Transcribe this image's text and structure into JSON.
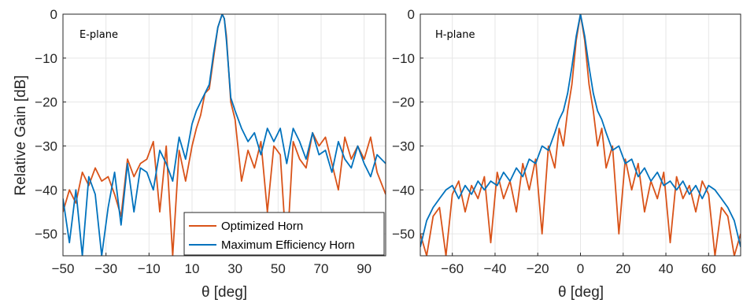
{
  "chart_data": [
    {
      "type": "line",
      "panel_label": "E-plane",
      "xlabel": "θ [deg]",
      "ylabel": "Relative Gain [dB]",
      "xlim": [
        -50,
        100
      ],
      "ylim": [
        -55,
        0
      ],
      "xticks": [
        -50,
        -30,
        -10,
        10,
        30,
        50,
        70,
        90
      ],
      "xtick_labels": [
        "−50",
        "−30",
        "−10",
        "10",
        "30",
        "50",
        "70",
        "90"
      ],
      "yticks": [
        -50,
        -40,
        -30,
        -20,
        -10,
        0
      ],
      "ytick_labels": [
        "−50",
        "−40",
        "−30",
        "−20",
        "−10",
        "0"
      ],
      "grid": true,
      "legend": {
        "placement": "bottom-right"
      },
      "series": [
        {
          "name": "Optimized Horn",
          "color": "#d95319",
          "x": [
            -50,
            -47,
            -44,
            -41,
            -38,
            -35,
            -32,
            -29,
            -26,
            -23,
            -20,
            -17,
            -14,
            -11,
            -8,
            -5,
            -2,
            1,
            4,
            7,
            10,
            12,
            14,
            16,
            18,
            20,
            22,
            24,
            25,
            26,
            28,
            30,
            33,
            36,
            39,
            42,
            45,
            48,
            51,
            54,
            57,
            60,
            63,
            66,
            69,
            72,
            75,
            78,
            81,
            84,
            87,
            90,
            93,
            96,
            100
          ],
          "y": [
            -45,
            -40,
            -43,
            -36,
            -39,
            -35,
            -38,
            -37,
            -41,
            -46,
            -33,
            -37,
            -34,
            -33,
            -29,
            -45,
            -30,
            -55,
            -31,
            -38,
            -30,
            -26,
            -23,
            -18,
            -17,
            -10,
            -3,
            0,
            -1,
            -5,
            -20,
            -24,
            -38,
            -31,
            -35,
            -29,
            -45,
            -30,
            -32,
            -55,
            -29,
            -33,
            -35,
            -27,
            -30,
            -28,
            -34,
            -40,
            -28,
            -33,
            -30,
            -33,
            -28,
            -36,
            -41
          ]
        },
        {
          "name": "Maximum Efficiency Horn",
          "color": "#0072bd",
          "x": [
            -50,
            -47,
            -44,
            -41,
            -38,
            -35,
            -32,
            -29,
            -26,
            -23,
            -20,
            -17,
            -14,
            -11,
            -8,
            -5,
            -2,
            1,
            4,
            7,
            10,
            12,
            14,
            16,
            18,
            20,
            22,
            24,
            25,
            26,
            28,
            30,
            33,
            36,
            39,
            42,
            45,
            48,
            51,
            54,
            57,
            60,
            63,
            66,
            69,
            72,
            75,
            78,
            81,
            84,
            87,
            90,
            93,
            96,
            100
          ],
          "y": [
            -42,
            -52,
            -40,
            -55,
            -37,
            -41,
            -55,
            -44,
            -36,
            -48,
            -34,
            -45,
            -35,
            -36,
            -40,
            -31,
            -34,
            -38,
            -28,
            -33,
            -25,
            -22,
            -20,
            -18,
            -16,
            -9,
            -3,
            0,
            -1,
            -6,
            -19,
            -22,
            -26,
            -29,
            -27,
            -32,
            -26,
            -29,
            -26,
            -34,
            -26,
            -29,
            -33,
            -27,
            -32,
            -31,
            -36,
            -29,
            -33,
            -35,
            -30,
            -34,
            -37,
            -32,
            -34
          ]
        }
      ]
    },
    {
      "type": "line",
      "panel_label": "H-plane",
      "xlabel": "θ [deg]",
      "ylabel": "",
      "xlim": [
        -75,
        75
      ],
      "ylim": [
        -55,
        0
      ],
      "xticks": [
        -60,
        -40,
        -20,
        0,
        20,
        40,
        60
      ],
      "xtick_labels": [
        "−60",
        "−40",
        "−20",
        "0",
        "20",
        "40",
        "60"
      ],
      "yticks": [
        -50,
        -40,
        -30,
        -20,
        -10,
        0
      ],
      "ytick_labels": [
        "−50",
        "−40",
        "−30",
        "−20",
        "−10",
        "0"
      ],
      "grid": true,
      "series": [
        {
          "name": "Optimized Horn",
          "color": "#d95319",
          "x": [
            -75,
            -72,
            -69,
            -66,
            -63,
            -60,
            -57,
            -54,
            -51,
            -48,
            -45,
            -42,
            -39,
            -36,
            -33,
            -30,
            -27,
            -24,
            -21,
            -18,
            -15,
            -12,
            -10,
            -8,
            -6,
            -4,
            -2,
            0,
            2,
            4,
            6,
            8,
            10,
            12,
            15,
            18,
            21,
            24,
            27,
            30,
            33,
            36,
            39,
            42,
            45,
            48,
            51,
            54,
            57,
            60,
            63,
            66,
            69,
            72,
            75
          ],
          "y": [
            -50,
            -55,
            -46,
            -44,
            -55,
            -41,
            -38,
            -45,
            -39,
            -42,
            -37,
            -52,
            -36,
            -42,
            -38,
            -45,
            -34,
            -40,
            -33,
            -50,
            -30,
            -35,
            -26,
            -30,
            -22,
            -16,
            -6,
            0,
            -6,
            -16,
            -22,
            -30,
            -26,
            -35,
            -30,
            -50,
            -33,
            -40,
            -34,
            -45,
            -38,
            -42,
            -36,
            -52,
            -37,
            -42,
            -39,
            -45,
            -38,
            -41,
            -55,
            -44,
            -46,
            -55,
            -50
          ]
        },
        {
          "name": "Maximum Efficiency Horn",
          "color": "#0072bd",
          "x": [
            -75,
            -72,
            -69,
            -66,
            -63,
            -60,
            -57,
            -54,
            -51,
            -48,
            -45,
            -42,
            -39,
            -36,
            -33,
            -30,
            -27,
            -24,
            -21,
            -18,
            -15,
            -12,
            -10,
            -8,
            -6,
            -4,
            -2,
            0,
            2,
            4,
            6,
            8,
            10,
            12,
            15,
            18,
            21,
            24,
            27,
            30,
            33,
            36,
            39,
            42,
            45,
            48,
            51,
            54,
            57,
            60,
            63,
            66,
            69,
            72,
            75
          ],
          "y": [
            -53,
            -47,
            -44,
            -42,
            -40,
            -39,
            -42,
            -39,
            -41,
            -38,
            -40,
            -38,
            -39,
            -36,
            -38,
            -35,
            -37,
            -33,
            -34,
            -30,
            -31,
            -27,
            -24,
            -22,
            -18,
            -12,
            -5,
            0,
            -5,
            -12,
            -18,
            -22,
            -24,
            -27,
            -31,
            -30,
            -34,
            -33,
            -37,
            -35,
            -38,
            -36,
            -39,
            -38,
            -40,
            -38,
            -41,
            -39,
            -42,
            -39,
            -40,
            -42,
            -44,
            -47,
            -53
          ]
        }
      ]
    }
  ]
}
